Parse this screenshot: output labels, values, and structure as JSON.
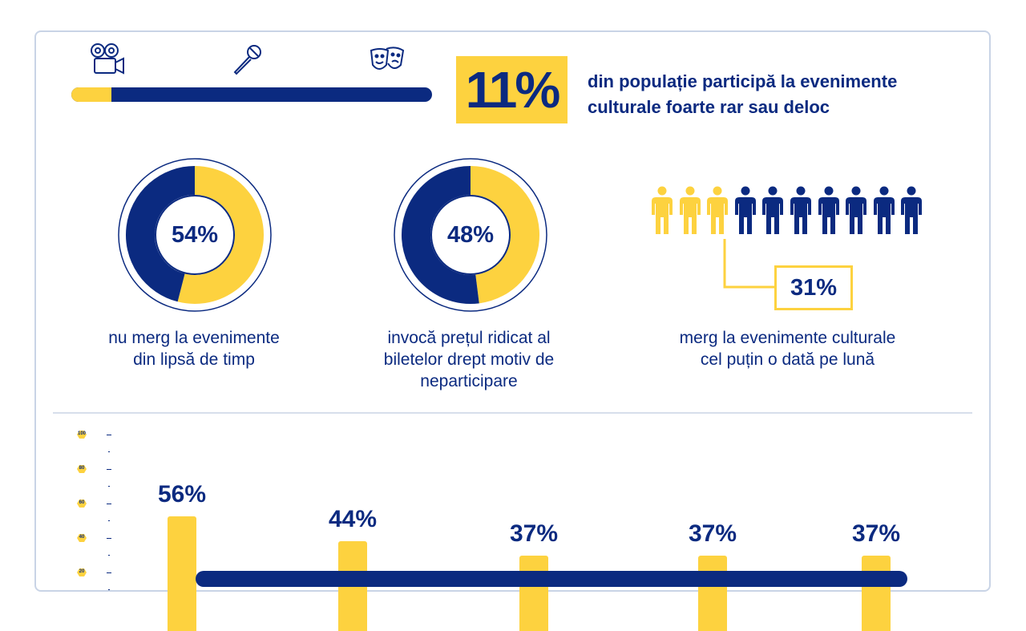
{
  "header": {
    "icons": [
      "film-camera-icon",
      "microphone-icon",
      "theater-masks-icon"
    ],
    "progress_fraction": 0.11,
    "big_value": "11%",
    "headline_line1": "din populație participă la evenimente",
    "headline_line2": "culturale foarte rar sau deloc"
  },
  "stats": [
    {
      "value": "54%",
      "fraction": 0.54,
      "caption_lines": [
        "nu merg la evenimente",
        "din lipsă de timp"
      ]
    },
    {
      "value": "48%",
      "fraction": 0.48,
      "caption_lines": [
        "invocă prețul ridicat al",
        "biletelor drept motiv de",
        "neparticipare"
      ]
    },
    {
      "value": "31%",
      "highlighted_people": 3,
      "total_people": 10,
      "caption_lines": [
        "merg la evenimente culturale",
        "cel puțin o dată pe lună"
      ]
    }
  ],
  "colors": {
    "navy": "#0b2a80",
    "yellow": "#fdd23f"
  },
  "chart_data": {
    "type": "bar",
    "categories": [
      "",
      "",
      "",
      "",
      ""
    ],
    "values": [
      56,
      44,
      37,
      37,
      37
    ],
    "labels": [
      "56%",
      "44%",
      "37%",
      "37%",
      "37%"
    ],
    "ylim": [
      0,
      100
    ],
    "y_ticks": [
      "100",
      "80",
      "60",
      "40",
      "20"
    ],
    "grid": false
  }
}
